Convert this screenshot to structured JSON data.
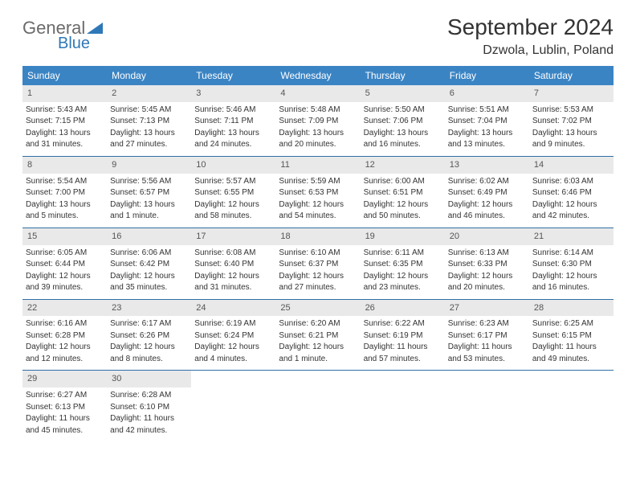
{
  "logo": {
    "text_top": "General",
    "text_bottom": "Blue",
    "color_gray": "#6b6b6b",
    "color_blue": "#2f78b7"
  },
  "title": "September 2024",
  "location": "Dzwola, Lublin, Poland",
  "colors": {
    "header_bg": "#3b84c4",
    "header_text": "#ffffff",
    "daynum_bg": "#e9e9e9",
    "daynum_text": "#555555",
    "week_border": "#2f6fa8",
    "body_text": "#333333"
  },
  "weekdays": [
    "Sunday",
    "Monday",
    "Tuesday",
    "Wednesday",
    "Thursday",
    "Friday",
    "Saturday"
  ],
  "weeks": [
    [
      {
        "n": "1",
        "sunrise": "Sunrise: 5:43 AM",
        "sunset": "Sunset: 7:15 PM",
        "day1": "Daylight: 13 hours",
        "day2": "and 31 minutes."
      },
      {
        "n": "2",
        "sunrise": "Sunrise: 5:45 AM",
        "sunset": "Sunset: 7:13 PM",
        "day1": "Daylight: 13 hours",
        "day2": "and 27 minutes."
      },
      {
        "n": "3",
        "sunrise": "Sunrise: 5:46 AM",
        "sunset": "Sunset: 7:11 PM",
        "day1": "Daylight: 13 hours",
        "day2": "and 24 minutes."
      },
      {
        "n": "4",
        "sunrise": "Sunrise: 5:48 AM",
        "sunset": "Sunset: 7:09 PM",
        "day1": "Daylight: 13 hours",
        "day2": "and 20 minutes."
      },
      {
        "n": "5",
        "sunrise": "Sunrise: 5:50 AM",
        "sunset": "Sunset: 7:06 PM",
        "day1": "Daylight: 13 hours",
        "day2": "and 16 minutes."
      },
      {
        "n": "6",
        "sunrise": "Sunrise: 5:51 AM",
        "sunset": "Sunset: 7:04 PM",
        "day1": "Daylight: 13 hours",
        "day2": "and 13 minutes."
      },
      {
        "n": "7",
        "sunrise": "Sunrise: 5:53 AM",
        "sunset": "Sunset: 7:02 PM",
        "day1": "Daylight: 13 hours",
        "day2": "and 9 minutes."
      }
    ],
    [
      {
        "n": "8",
        "sunrise": "Sunrise: 5:54 AM",
        "sunset": "Sunset: 7:00 PM",
        "day1": "Daylight: 13 hours",
        "day2": "and 5 minutes."
      },
      {
        "n": "9",
        "sunrise": "Sunrise: 5:56 AM",
        "sunset": "Sunset: 6:57 PM",
        "day1": "Daylight: 13 hours",
        "day2": "and 1 minute."
      },
      {
        "n": "10",
        "sunrise": "Sunrise: 5:57 AM",
        "sunset": "Sunset: 6:55 PM",
        "day1": "Daylight: 12 hours",
        "day2": "and 58 minutes."
      },
      {
        "n": "11",
        "sunrise": "Sunrise: 5:59 AM",
        "sunset": "Sunset: 6:53 PM",
        "day1": "Daylight: 12 hours",
        "day2": "and 54 minutes."
      },
      {
        "n": "12",
        "sunrise": "Sunrise: 6:00 AM",
        "sunset": "Sunset: 6:51 PM",
        "day1": "Daylight: 12 hours",
        "day2": "and 50 minutes."
      },
      {
        "n": "13",
        "sunrise": "Sunrise: 6:02 AM",
        "sunset": "Sunset: 6:49 PM",
        "day1": "Daylight: 12 hours",
        "day2": "and 46 minutes."
      },
      {
        "n": "14",
        "sunrise": "Sunrise: 6:03 AM",
        "sunset": "Sunset: 6:46 PM",
        "day1": "Daylight: 12 hours",
        "day2": "and 42 minutes."
      }
    ],
    [
      {
        "n": "15",
        "sunrise": "Sunrise: 6:05 AM",
        "sunset": "Sunset: 6:44 PM",
        "day1": "Daylight: 12 hours",
        "day2": "and 39 minutes."
      },
      {
        "n": "16",
        "sunrise": "Sunrise: 6:06 AM",
        "sunset": "Sunset: 6:42 PM",
        "day1": "Daylight: 12 hours",
        "day2": "and 35 minutes."
      },
      {
        "n": "17",
        "sunrise": "Sunrise: 6:08 AM",
        "sunset": "Sunset: 6:40 PM",
        "day1": "Daylight: 12 hours",
        "day2": "and 31 minutes."
      },
      {
        "n": "18",
        "sunrise": "Sunrise: 6:10 AM",
        "sunset": "Sunset: 6:37 PM",
        "day1": "Daylight: 12 hours",
        "day2": "and 27 minutes."
      },
      {
        "n": "19",
        "sunrise": "Sunrise: 6:11 AM",
        "sunset": "Sunset: 6:35 PM",
        "day1": "Daylight: 12 hours",
        "day2": "and 23 minutes."
      },
      {
        "n": "20",
        "sunrise": "Sunrise: 6:13 AM",
        "sunset": "Sunset: 6:33 PM",
        "day1": "Daylight: 12 hours",
        "day2": "and 20 minutes."
      },
      {
        "n": "21",
        "sunrise": "Sunrise: 6:14 AM",
        "sunset": "Sunset: 6:30 PM",
        "day1": "Daylight: 12 hours",
        "day2": "and 16 minutes."
      }
    ],
    [
      {
        "n": "22",
        "sunrise": "Sunrise: 6:16 AM",
        "sunset": "Sunset: 6:28 PM",
        "day1": "Daylight: 12 hours",
        "day2": "and 12 minutes."
      },
      {
        "n": "23",
        "sunrise": "Sunrise: 6:17 AM",
        "sunset": "Sunset: 6:26 PM",
        "day1": "Daylight: 12 hours",
        "day2": "and 8 minutes."
      },
      {
        "n": "24",
        "sunrise": "Sunrise: 6:19 AM",
        "sunset": "Sunset: 6:24 PM",
        "day1": "Daylight: 12 hours",
        "day2": "and 4 minutes."
      },
      {
        "n": "25",
        "sunrise": "Sunrise: 6:20 AM",
        "sunset": "Sunset: 6:21 PM",
        "day1": "Daylight: 12 hours",
        "day2": "and 1 minute."
      },
      {
        "n": "26",
        "sunrise": "Sunrise: 6:22 AM",
        "sunset": "Sunset: 6:19 PM",
        "day1": "Daylight: 11 hours",
        "day2": "and 57 minutes."
      },
      {
        "n": "27",
        "sunrise": "Sunrise: 6:23 AM",
        "sunset": "Sunset: 6:17 PM",
        "day1": "Daylight: 11 hours",
        "day2": "and 53 minutes."
      },
      {
        "n": "28",
        "sunrise": "Sunrise: 6:25 AM",
        "sunset": "Sunset: 6:15 PM",
        "day1": "Daylight: 11 hours",
        "day2": "and 49 minutes."
      }
    ],
    [
      {
        "n": "29",
        "sunrise": "Sunrise: 6:27 AM",
        "sunset": "Sunset: 6:13 PM",
        "day1": "Daylight: 11 hours",
        "day2": "and 45 minutes."
      },
      {
        "n": "30",
        "sunrise": "Sunrise: 6:28 AM",
        "sunset": "Sunset: 6:10 PM",
        "day1": "Daylight: 11 hours",
        "day2": "and 42 minutes."
      },
      null,
      null,
      null,
      null,
      null
    ]
  ]
}
